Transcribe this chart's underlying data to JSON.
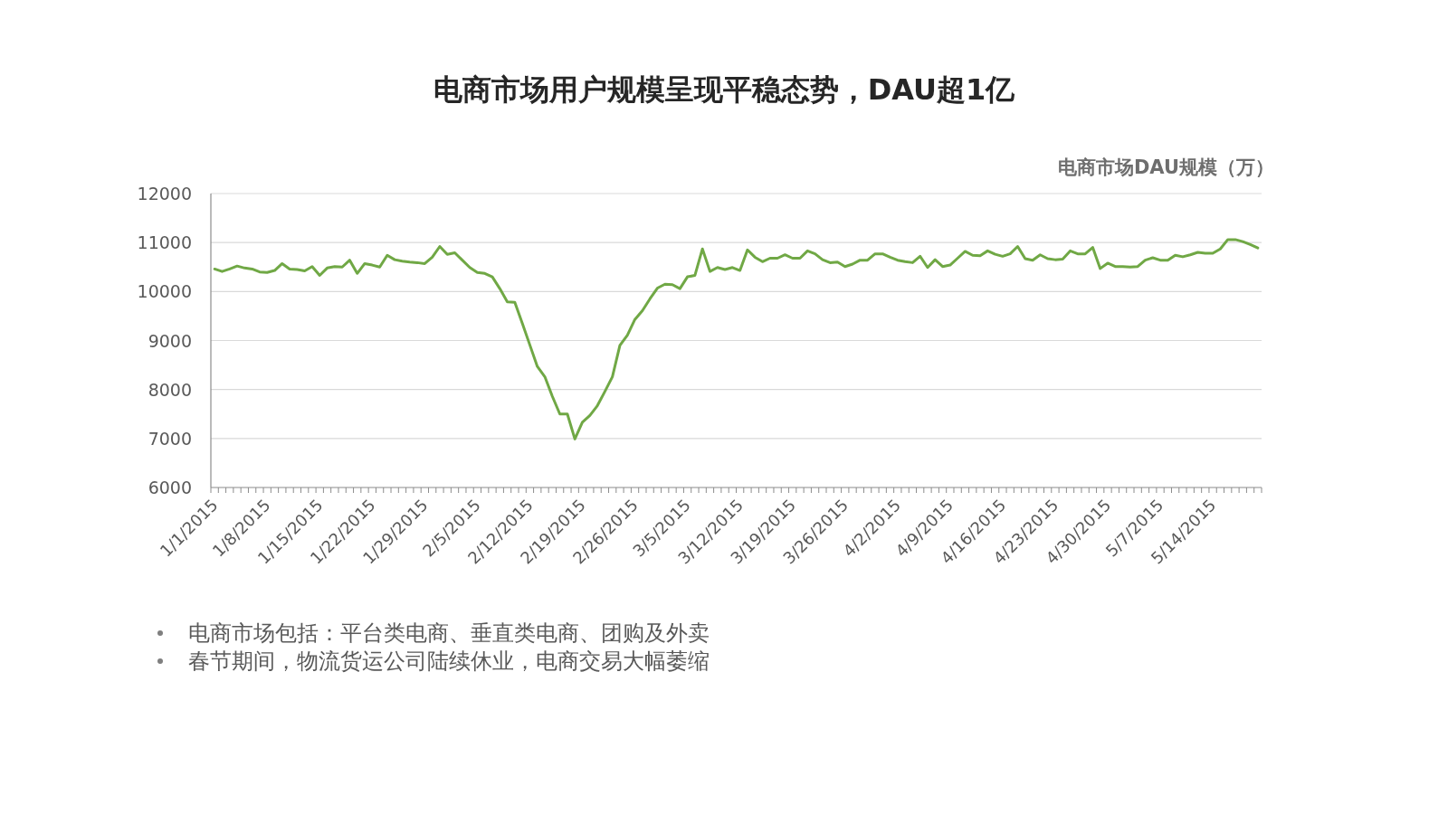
{
  "chart_data": {
    "type": "line",
    "title": "电商市场用户规模呈现平稳态势，DAU超1亿",
    "ylabel": "电商市场DAU规模（万）",
    "categories": [
      "1/1/2015",
      null,
      null,
      null,
      null,
      null,
      null,
      "1/8/2015",
      null,
      null,
      null,
      null,
      null,
      null,
      "1/15/2015",
      null,
      null,
      null,
      null,
      null,
      null,
      "1/22/2015",
      null,
      null,
      null,
      null,
      null,
      null,
      "1/29/2015",
      null,
      null,
      null,
      null,
      null,
      null,
      "2/5/2015",
      null,
      null,
      null,
      null,
      null,
      null,
      "2/12/2015",
      null,
      null,
      null,
      null,
      null,
      null,
      "2/19/2015",
      null,
      null,
      null,
      null,
      null,
      null,
      "2/26/2015",
      null,
      null,
      null,
      null,
      null,
      null,
      "3/5/2015",
      null,
      null,
      null,
      null,
      null,
      null,
      "3/12/2015",
      null,
      null,
      null,
      null,
      null,
      null,
      "3/19/2015",
      null,
      null,
      null,
      null,
      null,
      null,
      "3/26/2015",
      null,
      null,
      null,
      null,
      null,
      null,
      "4/2/2015",
      null,
      null,
      null,
      null,
      null,
      null,
      "4/9/2015",
      null,
      null,
      null,
      null,
      null,
      null,
      "4/16/2015",
      null,
      null,
      null,
      null,
      null,
      null,
      "4/23/2015",
      null,
      null,
      null,
      null,
      null,
      null,
      "4/30/2015",
      null,
      null,
      null,
      null,
      null,
      null,
      "5/7/2015",
      null,
      null,
      null,
      null,
      null,
      null,
      "5/14/2015",
      null,
      null,
      null,
      null,
      null,
      null
    ],
    "values": [
      10460,
      10410,
      10460,
      10520,
      10480,
      10460,
      10400,
      10390,
      10430,
      10570,
      10460,
      10450,
      10420,
      10510,
      10330,
      10480,
      10510,
      10500,
      10640,
      10370,
      10570,
      10540,
      10500,
      10740,
      10650,
      10620,
      10600,
      10590,
      10570,
      10700,
      10920,
      10760,
      10790,
      10640,
      10490,
      10390,
      10370,
      10300,
      10060,
      9790,
      9780,
      9350,
      8910,
      8470,
      8260,
      7860,
      7500,
      7500,
      6990,
      7330,
      7470,
      7670,
      7960,
      8260,
      8900,
      9110,
      9430,
      9610,
      9850,
      10070,
      10150,
      10140,
      10060,
      10300,
      10330,
      10870,
      10410,
      10490,
      10450,
      10490,
      10430,
      10850,
      10700,
      10610,
      10680,
      10680,
      10750,
      10680,
      10680,
      10830,
      10770,
      10650,
      10590,
      10600,
      10510,
      10560,
      10640,
      10640,
      10770,
      10770,
      10700,
      10640,
      10610,
      10590,
      10720,
      10490,
      10650,
      10510,
      10540,
      10680,
      10820,
      10740,
      10730,
      10830,
      10760,
      10720,
      10770,
      10920,
      10670,
      10640,
      10750,
      10670,
      10650,
      10660,
      10830,
      10770,
      10770,
      10900,
      10470,
      10580,
      10510,
      10510,
      10500,
      10510,
      10640,
      10690,
      10640,
      10640,
      10740,
      10710,
      10750,
      10800,
      10780,
      10780,
      10870,
      11060,
      11060,
      11020,
      10960,
      10890
    ],
    "color": "#70a845",
    "ylim": [
      6000,
      12000
    ],
    "yticks": [
      6000,
      7000,
      8000,
      9000,
      10000,
      11000,
      12000
    ],
    "grid": "y",
    "annotations": [
      "电商市场包括：平台类电商、垂直类电商、团购及外卖",
      "春节期间，物流货运公司陆续休业，电商交易大幅萎缩"
    ]
  }
}
